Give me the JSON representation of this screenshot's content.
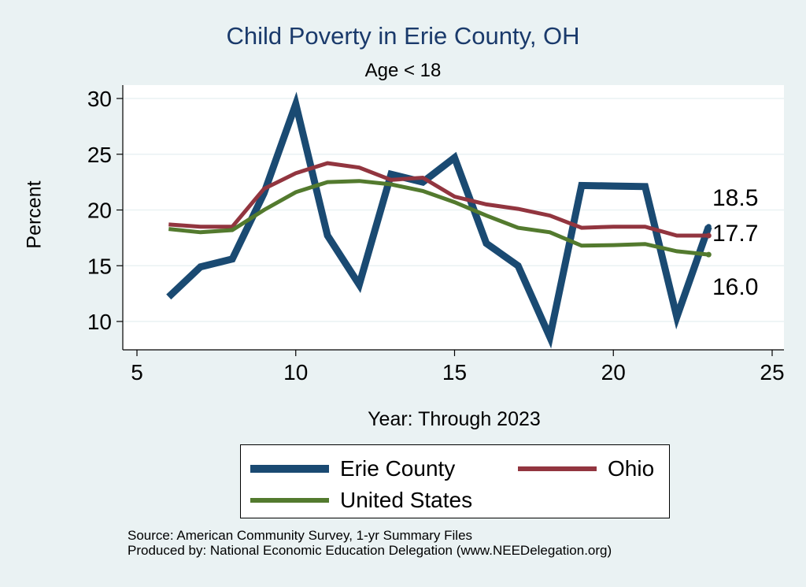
{
  "chart_data": {
    "type": "line",
    "title": "Child Poverty in Erie County, OH",
    "subtitle": "Age < 18",
    "xlabel": "Year: Through 2023",
    "ylabel": "Percent",
    "xlim": [
      5,
      25
    ],
    "ylim": [
      7.5,
      31
    ],
    "xticks": [
      5,
      10,
      15,
      20,
      25
    ],
    "yticks": [
      10,
      15,
      20,
      25,
      30
    ],
    "grid": true,
    "legend_position": "bottom",
    "series": [
      {
        "name": "Erie County",
        "color": "#1a4a72",
        "x": [
          6,
          7,
          8,
          9,
          10,
          11,
          12,
          13,
          14,
          15,
          16,
          17,
          18,
          19,
          20,
          21,
          22,
          23
        ],
        "values": [
          12.2,
          14.9,
          15.6,
          21.5,
          29.5,
          17.7,
          13.3,
          23.2,
          22.5,
          24.7,
          17.0,
          15.0,
          8.6,
          22.2,
          22.15,
          22.1,
          10.4,
          18.5
        ],
        "end_label": "18.5"
      },
      {
        "name": "Ohio",
        "color": "#92353f",
        "x": [
          6,
          7,
          8,
          9,
          10,
          11,
          12,
          13,
          14,
          15,
          16,
          17,
          18,
          19,
          20,
          21,
          22,
          23
        ],
        "values": [
          18.7,
          18.5,
          18.5,
          21.9,
          23.3,
          24.2,
          23.8,
          22.7,
          22.9,
          21.2,
          20.5,
          20.1,
          19.5,
          18.4,
          18.5,
          18.5,
          17.7,
          17.7
        ],
        "end_label": "17.7"
      },
      {
        "name": "United States",
        "color": "#537a2e",
        "x": [
          6,
          7,
          8,
          9,
          10,
          11,
          12,
          13,
          14,
          15,
          16,
          17,
          18,
          19,
          20,
          21,
          22,
          23
        ],
        "values": [
          18.3,
          18.0,
          18.2,
          20.0,
          21.6,
          22.5,
          22.6,
          22.3,
          21.7,
          20.7,
          19.5,
          18.4,
          18.0,
          16.8,
          16.85,
          16.95,
          16.3,
          16.0
        ],
        "end_label": "16.0"
      }
    ]
  },
  "footer": {
    "source": "Source: American Community Survey, 1-yr Summary Files",
    "produced_by": "Produced by: National Economic Education Delegation (www.NEEDelegation.org)"
  }
}
